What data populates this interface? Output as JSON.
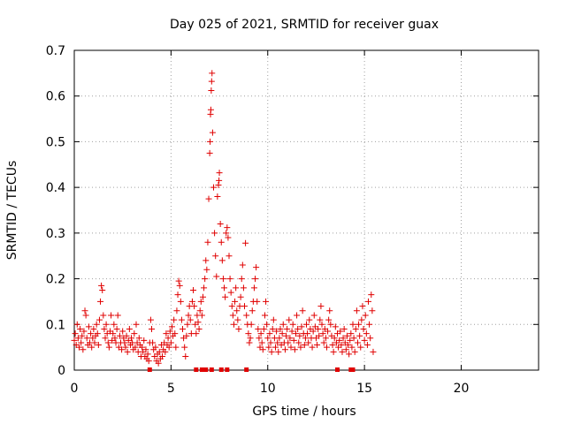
{
  "chart_data": {
    "type": "scatter",
    "title": "Day 025 of 2021, SRMTID for receiver guax",
    "xlabel": "GPS time / hours",
    "ylabel": "SRMTID / TECUs",
    "xlim": [
      0,
      24
    ],
    "ylim": [
      0,
      0.7
    ],
    "xticks": [
      0,
      5,
      10,
      15,
      20
    ],
    "yticks": [
      0,
      0.1,
      0.2,
      0.3,
      0.4,
      0.5,
      0.6,
      0.7
    ],
    "ytick_labels": [
      "0",
      "0.1",
      "0.2",
      "0.3",
      "0.4",
      "0.5",
      "0.6",
      "0.7"
    ],
    "grid": true,
    "marker": "+",
    "color": "#e00000",
    "series": [
      {
        "name": "SRMTID",
        "points": [
          [
            0.0,
            0.065
          ],
          [
            0.05,
            0.08
          ],
          [
            0.1,
            0.055
          ],
          [
            0.15,
            0.1
          ],
          [
            0.2,
            0.07
          ],
          [
            0.25,
            0.05
          ],
          [
            0.3,
            0.09
          ],
          [
            0.35,
            0.06
          ],
          [
            0.4,
            0.075
          ],
          [
            0.45,
            0.045
          ],
          [
            0.5,
            0.085
          ],
          [
            0.55,
            0.13
          ],
          [
            0.6,
            0.12
          ],
          [
            0.65,
            0.07
          ],
          [
            0.7,
            0.055
          ],
          [
            0.75,
            0.095
          ],
          [
            0.8,
            0.06
          ],
          [
            0.85,
            0.08
          ],
          [
            0.9,
            0.05
          ],
          [
            0.95,
            0.07
          ],
          [
            1.0,
            0.09
          ],
          [
            1.05,
            0.06
          ],
          [
            1.1,
            0.075
          ],
          [
            1.15,
            0.1
          ],
          [
            1.2,
            0.08
          ],
          [
            1.25,
            0.055
          ],
          [
            1.3,
            0.11
          ],
          [
            1.35,
            0.15
          ],
          [
            1.4,
            0.185
          ],
          [
            1.45,
            0.175
          ],
          [
            1.5,
            0.12
          ],
          [
            1.55,
            0.09
          ],
          [
            1.6,
            0.07
          ],
          [
            1.65,
            0.1
          ],
          [
            1.7,
            0.08
          ],
          [
            1.75,
            0.06
          ],
          [
            1.8,
            0.05
          ],
          [
            1.85,
            0.085
          ],
          [
            1.9,
            0.12
          ],
          [
            1.95,
            0.065
          ],
          [
            2.0,
            0.08
          ],
          [
            2.05,
            0.1
          ],
          [
            2.1,
            0.07
          ],
          [
            2.15,
            0.06
          ],
          [
            2.2,
            0.09
          ],
          [
            2.25,
            0.12
          ],
          [
            2.3,
            0.05
          ],
          [
            2.35,
            0.075
          ],
          [
            2.4,
            0.06
          ],
          [
            2.45,
            0.045
          ],
          [
            2.5,
            0.085
          ],
          [
            2.55,
            0.07
          ],
          [
            2.6,
            0.06
          ],
          [
            2.65,
            0.05
          ],
          [
            2.7,
            0.075
          ],
          [
            2.75,
            0.04
          ],
          [
            2.8,
            0.065
          ],
          [
            2.85,
            0.09
          ],
          [
            2.9,
            0.055
          ],
          [
            2.95,
            0.07
          ],
          [
            3.0,
            0.06
          ],
          [
            3.05,
            0.045
          ],
          [
            3.1,
            0.08
          ],
          [
            3.15,
            0.05
          ],
          [
            3.2,
            0.1
          ],
          [
            3.25,
            0.06
          ],
          [
            3.3,
            0.04
          ],
          [
            3.35,
            0.07
          ],
          [
            3.4,
            0.055
          ],
          [
            3.45,
            0.03
          ],
          [
            3.5,
            0.05
          ],
          [
            3.55,
            0.04
          ],
          [
            3.6,
            0.065
          ],
          [
            3.65,
            0.03
          ],
          [
            3.7,
            0.045
          ],
          [
            3.75,
            0.025
          ],
          [
            3.8,
            0.035
          ],
          [
            3.85,
            0.02
          ],
          [
            3.9,
            0.06
          ],
          [
            3.95,
            0.11
          ],
          [
            4.0,
            0.09
          ],
          [
            4.05,
            0.06
          ],
          [
            4.1,
            0.045
          ],
          [
            4.15,
            0.03
          ],
          [
            4.2,
            0.05
          ],
          [
            4.25,
            0.02
          ],
          [
            4.3,
            0.035
          ],
          [
            4.35,
            0.015
          ],
          [
            4.4,
            0.04
          ],
          [
            4.45,
            0.025
          ],
          [
            4.5,
            0.055
          ],
          [
            4.55,
            0.03
          ],
          [
            4.6,
            0.045
          ],
          [
            4.65,
            0.06
          ],
          [
            4.7,
            0.04
          ],
          [
            4.75,
            0.08
          ],
          [
            4.8,
            0.055
          ],
          [
            4.85,
            0.07
          ],
          [
            4.9,
            0.05
          ],
          [
            4.95,
            0.085
          ],
          [
            5.0,
            0.06
          ],
          [
            5.05,
            0.095
          ],
          [
            5.1,
            0.075
          ],
          [
            5.15,
            0.11
          ],
          [
            5.2,
            0.08
          ],
          [
            5.25,
            0.05
          ],
          [
            5.3,
            0.13
          ],
          [
            5.35,
            0.165
          ],
          [
            5.4,
            0.195
          ],
          [
            5.45,
            0.185
          ],
          [
            5.5,
            0.15
          ],
          [
            5.55,
            0.11
          ],
          [
            5.6,
            0.09
          ],
          [
            5.65,
            0.07
          ],
          [
            5.7,
            0.05
          ],
          [
            5.75,
            0.03
          ],
          [
            5.8,
            0.075
          ],
          [
            5.85,
            0.1
          ],
          [
            5.9,
            0.12
          ],
          [
            5.95,
            0.14
          ],
          [
            6.0,
            0.11
          ],
          [
            6.05,
            0.08
          ],
          [
            6.1,
            0.15
          ],
          [
            6.15,
            0.175
          ],
          [
            6.2,
            0.14
          ],
          [
            6.25,
            0.1
          ],
          [
            6.3,
            0.08
          ],
          [
            6.35,
            0.12
          ],
          [
            6.4,
            0.105
          ],
          [
            6.45,
            0.09
          ],
          [
            6.5,
            0.13
          ],
          [
            6.55,
            0.15
          ],
          [
            6.6,
            0.12
          ],
          [
            6.65,
            0.16
          ],
          [
            6.7,
            0.18
          ],
          [
            6.75,
            0.2
          ],
          [
            6.8,
            0.24
          ],
          [
            6.85,
            0.22
          ],
          [
            6.9,
            0.28
          ],
          [
            6.95,
            0.375
          ],
          [
            7.0,
            0.475
          ],
          [
            7.02,
            0.5
          ],
          [
            7.04,
            0.56
          ],
          [
            7.06,
            0.57
          ],
          [
            7.08,
            0.612
          ],
          [
            7.1,
            0.632
          ],
          [
            7.12,
            0.65
          ],
          [
            7.15,
            0.52
          ],
          [
            7.2,
            0.4
          ],
          [
            7.25,
            0.3
          ],
          [
            7.3,
            0.25
          ],
          [
            7.35,
            0.205
          ],
          [
            7.4,
            0.38
          ],
          [
            7.45,
            0.405
          ],
          [
            7.48,
            0.415
          ],
          [
            7.5,
            0.432
          ],
          [
            7.55,
            0.32
          ],
          [
            7.6,
            0.28
          ],
          [
            7.65,
            0.24
          ],
          [
            7.7,
            0.2
          ],
          [
            7.75,
            0.18
          ],
          [
            7.8,
            0.16
          ],
          [
            7.85,
            0.3
          ],
          [
            7.9,
            0.312
          ],
          [
            7.95,
            0.29
          ],
          [
            8.0,
            0.25
          ],
          [
            8.05,
            0.2
          ],
          [
            8.1,
            0.17
          ],
          [
            8.15,
            0.14
          ],
          [
            8.2,
            0.12
          ],
          [
            8.25,
            0.1
          ],
          [
            8.3,
            0.15
          ],
          [
            8.35,
            0.18
          ],
          [
            8.4,
            0.13
          ],
          [
            8.45,
            0.11
          ],
          [
            8.5,
            0.09
          ],
          [
            8.55,
            0.14
          ],
          [
            8.6,
            0.16
          ],
          [
            8.65,
            0.2
          ],
          [
            8.7,
            0.23
          ],
          [
            8.75,
            0.18
          ],
          [
            8.8,
            0.14
          ],
          [
            8.85,
            0.278
          ],
          [
            8.9,
            0.12
          ],
          [
            8.95,
            0.1
          ],
          [
            9.0,
            0.08
          ],
          [
            9.05,
            0.06
          ],
          [
            9.1,
            0.07
          ],
          [
            9.15,
            0.1
          ],
          [
            9.2,
            0.13
          ],
          [
            9.25,
            0.15
          ],
          [
            9.3,
            0.18
          ],
          [
            9.35,
            0.2
          ],
          [
            9.4,
            0.225
          ],
          [
            9.45,
            0.15
          ],
          [
            9.5,
            0.09
          ],
          [
            9.55,
            0.07
          ],
          [
            9.6,
            0.05
          ],
          [
            9.65,
            0.08
          ],
          [
            9.7,
            0.06
          ],
          [
            9.75,
            0.045
          ],
          [
            9.8,
            0.09
          ],
          [
            9.85,
            0.12
          ],
          [
            9.9,
            0.15
          ],
          [
            9.95,
            0.1
          ],
          [
            10.0,
            0.07
          ],
          [
            10.05,
            0.05
          ],
          [
            10.1,
            0.08
          ],
          [
            10.15,
            0.06
          ],
          [
            10.2,
            0.04
          ],
          [
            10.25,
            0.09
          ],
          [
            10.3,
            0.11
          ],
          [
            10.35,
            0.07
          ],
          [
            10.4,
            0.05
          ],
          [
            10.45,
            0.085
          ],
          [
            10.5,
            0.06
          ],
          [
            10.55,
            0.04
          ],
          [
            10.6,
            0.07
          ],
          [
            10.65,
            0.09
          ],
          [
            10.7,
            0.055
          ],
          [
            10.75,
            0.08
          ],
          [
            10.8,
            0.1
          ],
          [
            10.85,
            0.06
          ],
          [
            10.9,
            0.045
          ],
          [
            10.95,
            0.075
          ],
          [
            11.0,
            0.09
          ],
          [
            11.05,
            0.06
          ],
          [
            11.1,
            0.11
          ],
          [
            11.15,
            0.07
          ],
          [
            11.2,
            0.05
          ],
          [
            11.25,
            0.085
          ],
          [
            11.3,
            0.1
          ],
          [
            11.35,
            0.065
          ],
          [
            11.4,
            0.045
          ],
          [
            11.45,
            0.08
          ],
          [
            11.5,
            0.12
          ],
          [
            11.55,
            0.09
          ],
          [
            11.6,
            0.06
          ],
          [
            11.65,
            0.075
          ],
          [
            11.7,
            0.05
          ],
          [
            11.75,
            0.095
          ],
          [
            11.8,
            0.13
          ],
          [
            11.85,
            0.08
          ],
          [
            11.9,
            0.055
          ],
          [
            11.95,
            0.07
          ],
          [
            12.0,
            0.1
          ],
          [
            12.05,
            0.08
          ],
          [
            12.1,
            0.06
          ],
          [
            12.15,
            0.11
          ],
          [
            12.2,
            0.09
          ],
          [
            12.25,
            0.07
          ],
          [
            12.3,
            0.05
          ],
          [
            12.35,
            0.085
          ],
          [
            12.4,
            0.12
          ],
          [
            12.45,
            0.095
          ],
          [
            12.5,
            0.07
          ],
          [
            12.55,
            0.055
          ],
          [
            12.6,
            0.09
          ],
          [
            12.65,
            0.075
          ],
          [
            12.7,
            0.11
          ],
          [
            12.75,
            0.14
          ],
          [
            12.8,
            0.1
          ],
          [
            12.85,
            0.08
          ],
          [
            12.9,
            0.06
          ],
          [
            12.95,
            0.09
          ],
          [
            13.0,
            0.07
          ],
          [
            13.05,
            0.05
          ],
          [
            13.1,
            0.085
          ],
          [
            13.15,
            0.11
          ],
          [
            13.2,
            0.13
          ],
          [
            13.25,
            0.1
          ],
          [
            13.3,
            0.075
          ],
          [
            13.35,
            0.055
          ],
          [
            13.4,
            0.04
          ],
          [
            13.45,
            0.07
          ],
          [
            13.5,
            0.095
          ],
          [
            13.55,
            0.06
          ],
          [
            13.6,
            0.08
          ],
          [
            13.65,
            0.05
          ],
          [
            13.7,
            0.065
          ],
          [
            13.75,
            0.085
          ],
          [
            13.8,
            0.055
          ],
          [
            13.85,
            0.04
          ],
          [
            13.9,
            0.07
          ],
          [
            13.95,
            0.09
          ],
          [
            14.0,
            0.06
          ],
          [
            14.05,
            0.045
          ],
          [
            14.1,
            0.075
          ],
          [
            14.15,
            0.055
          ],
          [
            14.2,
            0.035
          ],
          [
            14.25,
            0.065
          ],
          [
            14.3,
            0.08
          ],
          [
            14.35,
            0.05
          ],
          [
            14.4,
            0.1
          ],
          [
            14.45,
            0.07
          ],
          [
            14.5,
            0.04
          ],
          [
            14.55,
            0.09
          ],
          [
            14.6,
            0.13
          ],
          [
            14.65,
            0.06
          ],
          [
            14.7,
            0.1
          ],
          [
            14.75,
            0.075
          ],
          [
            14.8,
            0.05
          ],
          [
            14.85,
            0.11
          ],
          [
            14.9,
            0.14
          ],
          [
            14.95,
            0.09
          ],
          [
            15.0,
            0.065
          ],
          [
            15.05,
            0.12
          ],
          [
            15.1,
            0.08
          ],
          [
            15.15,
            0.055
          ],
          [
            15.2,
            0.15
          ],
          [
            15.25,
            0.1
          ],
          [
            15.3,
            0.07
          ],
          [
            15.35,
            0.165
          ],
          [
            15.4,
            0.13
          ],
          [
            15.45,
            0.04
          ]
        ]
      }
    ],
    "zero_points_x": [
      3.9,
      6.3,
      6.6,
      6.8,
      7.1,
      7.6,
      7.9,
      8.9,
      13.6,
      14.3,
      14.4
    ]
  }
}
